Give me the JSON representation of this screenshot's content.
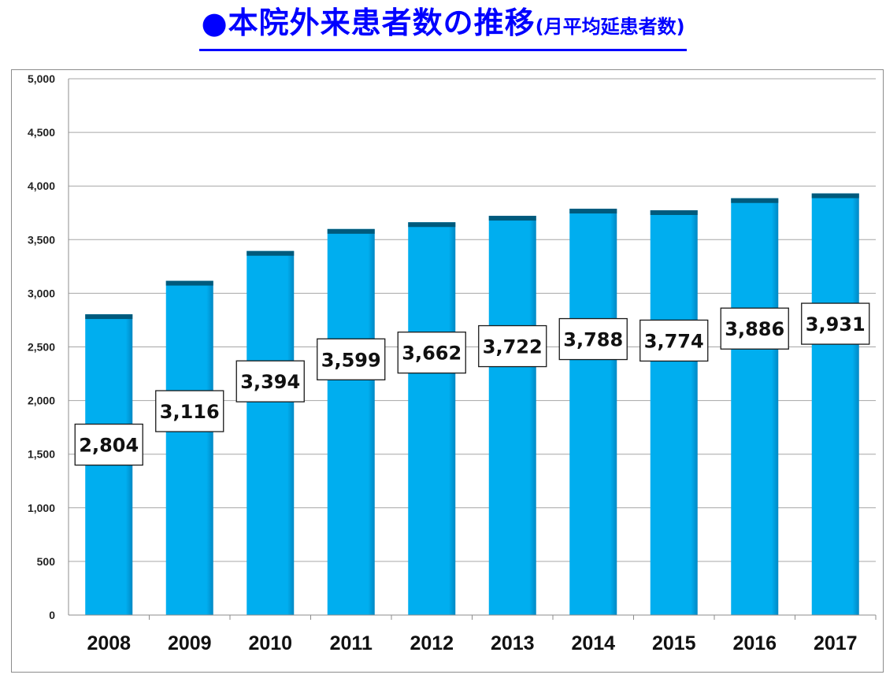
{
  "title": {
    "main": "●本院外来患者数の推移",
    "sub": "(月平均延患者数)"
  },
  "colors": {
    "title": "#0000ff",
    "bar": "#00aeef",
    "bar_top": "#005a7c",
    "gridline": "#a6a6a6"
  },
  "chart_data": {
    "type": "bar",
    "title": "●本院外来患者数の推移(月平均延患者数)",
    "xlabel": "",
    "ylabel": "",
    "categories": [
      "2008",
      "2009",
      "2010",
      "2011",
      "2012",
      "2013",
      "2014",
      "2015",
      "2016",
      "2017"
    ],
    "values": [
      2804,
      3116,
      3394,
      3599,
      3662,
      3722,
      3788,
      3774,
      3886,
      3931
    ],
    "value_labels": [
      "2,804",
      "3,116",
      "3,394",
      "3,599",
      "3,662",
      "3,722",
      "3,788",
      "3,774",
      "3,886",
      "3,931"
    ],
    "ylim": [
      0,
      5000
    ],
    "yticks": [
      0,
      500,
      1000,
      1500,
      2000,
      2500,
      3000,
      3500,
      4000,
      4500,
      5000
    ],
    "ytick_labels": [
      "0",
      "500",
      "1,000",
      "1,500",
      "2,000",
      "2,500",
      "3,000",
      "3,500",
      "4,000",
      "4,500",
      "5,000"
    ],
    "grid": true,
    "legend": "none"
  }
}
